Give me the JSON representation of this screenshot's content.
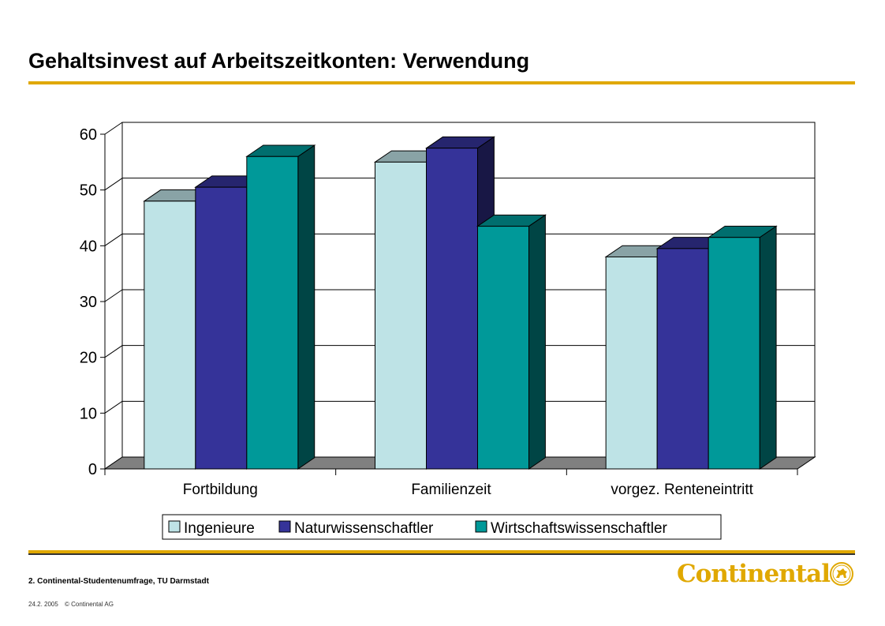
{
  "page": {
    "title": "Gehaltsinvest auf Arbeitszeitkonten: Verwendung"
  },
  "footer": {
    "survey": "2. Continental-Studentenumfrage, TU Darmstadt",
    "date": "24.2. 2005",
    "copyright": "© Continental AG"
  },
  "logo": {
    "text": "Continental",
    "icon": "horse-emblem-icon"
  },
  "colors": {
    "accent": "#E0A800",
    "ingenieure": "#BEE3E6",
    "naturwissenschaftler": "#353399",
    "wirtschaftswissenschaftler": "#009999"
  },
  "chart_data": {
    "type": "bar",
    "style": "3d-clustered",
    "categories": [
      "Fortbildung",
      "Familienzeit",
      "vorgez. Renteneintritt"
    ],
    "series": [
      {
        "name": "Ingenieure",
        "values": [
          48,
          55,
          38
        ]
      },
      {
        "name": "Naturwissenschaftler",
        "values": [
          50.5,
          57.5,
          39.5
        ]
      },
      {
        "name": "Wirtschaftswissenschaftler",
        "values": [
          56,
          43.5,
          41.5
        ]
      }
    ],
    "yticks": [
      "0",
      "10",
      "20",
      "30",
      "40",
      "50",
      "60"
    ],
    "ylim": [
      0,
      60
    ],
    "grid": true,
    "legend": "bottom",
    "title": "",
    "xlabel": "",
    "ylabel": ""
  }
}
